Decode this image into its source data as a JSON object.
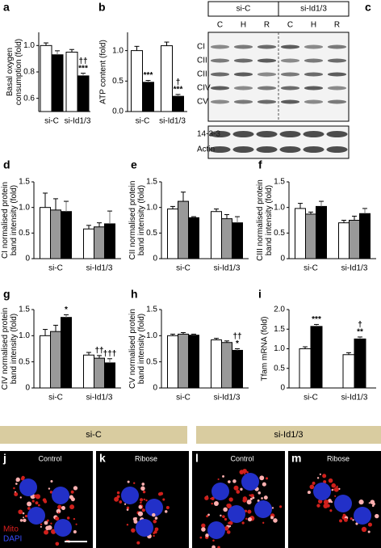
{
  "chart_data": [
    {
      "type": "bar",
      "panel": "a",
      "ylabel": [
        "Basal oxygen",
        "consumption (fold)"
      ],
      "categories": [
        "si-C",
        "si-Id1/3"
      ],
      "ylim": [
        0.5,
        1.1
      ],
      "yticks": [
        0.6,
        0.8,
        {
          "value": 1,
          "label": "1.0"
        }
      ],
      "series": [
        {
          "color": "#ffffff",
          "values": [
            1.0,
            0.95
          ],
          "errors": [
            0.02,
            0.02
          ]
        },
        {
          "color": "#000000",
          "values": [
            0.93,
            0.77
          ],
          "errors": [
            0.03,
            0.02
          ],
          "annotations": [
            null,
            [
              "††",
              "***"
            ]
          ]
        }
      ]
    },
    {
      "type": "bar",
      "panel": "b",
      "ylabel": [
        "ATP content (fold)"
      ],
      "categories": [
        "si-C",
        "si-Id1/3"
      ],
      "ylim": [
        0,
        1.3
      ],
      "yticks": [
        {
          "value": 0,
          "label": "0.0"
        },
        0.5,
        {
          "value": 1,
          "label": "1.0"
        }
      ],
      "series": [
        {
          "color": "#ffffff",
          "values": [
            1.0,
            1.08
          ],
          "errors": [
            0.07,
            0.06
          ]
        },
        {
          "color": "#000000",
          "values": [
            0.48,
            0.25
          ],
          "errors": [
            0.03,
            0.03
          ],
          "annotations": [
            [
              "***"
            ],
            [
              "†",
              "***"
            ]
          ]
        }
      ]
    },
    {
      "type": "bar",
      "panel": "d",
      "ylabel": [
        "CI normalised protein",
        "band intensity (fold)"
      ],
      "categories": [
        "si-C",
        "si-Id1/3"
      ],
      "ylim": [
        0,
        1.5
      ],
      "yticks": [
        0,
        0.5,
        {
          "value": 1,
          "label": "1.0"
        },
        1.5
      ],
      "series": [
        {
          "color": "#ffffff",
          "values": [
            1.0,
            0.58
          ],
          "errors": [
            0.28,
            0.07
          ]
        },
        {
          "color": "#999999",
          "values": [
            0.95,
            0.62
          ],
          "errors": [
            0.22,
            0.08
          ]
        },
        {
          "color": "#000000",
          "values": [
            0.92,
            0.68
          ],
          "errors": [
            0.2,
            0.25
          ]
        }
      ]
    },
    {
      "type": "bar",
      "panel": "e",
      "ylabel": [
        "CII normalised protein",
        "band intensity (fold)"
      ],
      "categories": [
        "si-C",
        "si-Id1/3"
      ],
      "ylim": [
        0,
        1.5
      ],
      "yticks": [
        0,
        0.5,
        {
          "value": 1,
          "label": "1.0"
        },
        1.5
      ],
      "series": [
        {
          "color": "#ffffff",
          "values": [
            0.97,
            0.92
          ],
          "errors": [
            0.05,
            0.05
          ]
        },
        {
          "color": "#999999",
          "values": [
            1.12,
            0.78
          ],
          "errors": [
            0.18,
            0.08
          ]
        },
        {
          "color": "#000000",
          "values": [
            0.8,
            0.7
          ],
          "errors": [
            0.02,
            0.12
          ]
        }
      ]
    },
    {
      "type": "bar",
      "panel": "f",
      "ylabel": [
        "CIII normalised protein",
        "band intensity (fold)"
      ],
      "categories": [
        "si-C",
        "si-Id1/3"
      ],
      "ylim": [
        0,
        1.5
      ],
      "yticks": [
        0,
        0.5,
        {
          "value": 1,
          "label": "1.0"
        },
        1.5
      ],
      "series": [
        {
          "color": "#ffffff",
          "values": [
            0.98,
            0.7
          ],
          "errors": [
            0.1,
            0.05
          ]
        },
        {
          "color": "#999999",
          "values": [
            0.87,
            0.75
          ],
          "errors": [
            0.04,
            0.08
          ]
        },
        {
          "color": "#000000",
          "values": [
            1.02,
            0.88
          ],
          "errors": [
            0.1,
            0.1
          ]
        }
      ]
    },
    {
      "type": "bar",
      "panel": "g",
      "ylabel": [
        "CIV normalised protein",
        "band intensity (fold)"
      ],
      "categories": [
        "si-C",
        "si-Id1/3"
      ],
      "ylim": [
        0,
        1.5
      ],
      "yticks": [
        0,
        0.5,
        {
          "value": 1,
          "label": "1.0"
        },
        1.5
      ],
      "series": [
        {
          "color": "#ffffff",
          "values": [
            1.0,
            0.63
          ],
          "errors": [
            0.12,
            0.05
          ]
        },
        {
          "color": "#999999",
          "values": [
            1.08,
            0.57
          ],
          "errors": [
            0.12,
            0.05
          ],
          "annotations": [
            null,
            [
              "††"
            ]
          ]
        },
        {
          "color": "#000000",
          "values": [
            1.35,
            0.48
          ],
          "errors": [
            0.05,
            0.08
          ],
          "annotations": [
            [
              "*"
            ],
            [
              "†††"
            ]
          ]
        }
      ]
    },
    {
      "type": "bar",
      "panel": "h",
      "ylabel": [
        "CV normalised protein",
        "band intensity (fold)"
      ],
      "categories": [
        "si-C",
        "si-Id1/3"
      ],
      "ylim": [
        0,
        1.5
      ],
      "yticks": [
        0,
        0.5,
        {
          "value": 1,
          "label": "1.0"
        },
        1.5
      ],
      "series": [
        {
          "color": "#ffffff",
          "values": [
            1.0,
            0.92
          ],
          "errors": [
            0.03,
            0.03
          ]
        },
        {
          "color": "#999999",
          "values": [
            1.03,
            0.87
          ],
          "errors": [
            0.03,
            0.03
          ]
        },
        {
          "color": "#000000",
          "values": [
            1.01,
            0.72
          ],
          "errors": [
            0.02,
            0.03
          ],
          "annotations": [
            null,
            [
              "††",
              "*"
            ]
          ]
        }
      ]
    },
    {
      "type": "bar",
      "panel": "i",
      "ylabel": [
        "Tfam mRNA (fold)"
      ],
      "categories": [
        "si-C",
        "si-Id1/3"
      ],
      "ylim": [
        0,
        2
      ],
      "yticks": [
        0,
        0.5,
        {
          "value": 1,
          "label": "1.0"
        },
        1.5,
        {
          "value": 2,
          "label": "2.0"
        }
      ],
      "series": [
        {
          "color": "#ffffff",
          "values": [
            1.0,
            0.85
          ],
          "errors": [
            0.05,
            0.05
          ]
        },
        {
          "color": "#000000",
          "values": [
            1.57,
            1.25
          ],
          "errors": [
            0.05,
            0.05
          ],
          "annotations": [
            [
              "***"
            ],
            [
              "†",
              "**"
            ]
          ]
        }
      ]
    }
  ],
  "blot": {
    "panel": "c",
    "groups": [
      "si-C",
      "si-Id1/3"
    ],
    "lanes": [
      "C",
      "H",
      "R",
      "C",
      "H",
      "R"
    ],
    "rows": [
      "CI",
      "CII",
      "CIII",
      "CIV",
      "CV"
    ],
    "loading": [
      "14-3-3",
      "Actin"
    ]
  },
  "banner": [
    "si-C",
    "si-Id1/3"
  ],
  "images": [
    {
      "panel": "j",
      "label": "Control"
    },
    {
      "panel": "k",
      "label": "Ribose"
    },
    {
      "panel": "l",
      "label": "Control"
    },
    {
      "panel": "m",
      "label": "Ribose"
    }
  ],
  "stain_legend": [
    "Mito",
    "DAPI"
  ]
}
